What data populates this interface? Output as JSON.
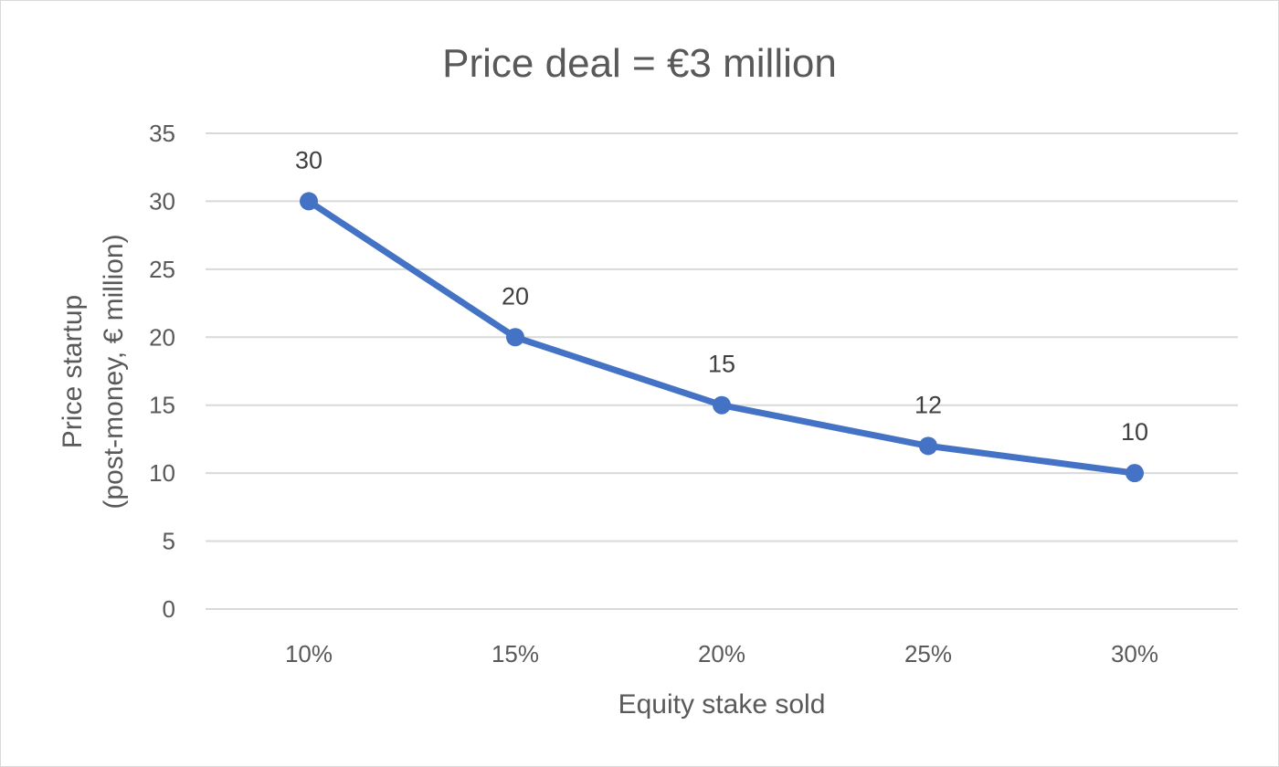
{
  "chart_data": {
    "type": "line",
    "title": "Price deal = €3 million",
    "xlabel": "Equity stake sold",
    "ylabel_lines": [
      "Price startup",
      "(post-money, € million)"
    ],
    "categories": [
      "10%",
      "15%",
      "20%",
      "25%",
      "30%"
    ],
    "series": [
      {
        "values": [
          30,
          20,
          15,
          12,
          10
        ],
        "color": "#4472c4"
      }
    ],
    "data_labels": [
      "30",
      "20",
      "15",
      "12",
      "10"
    ],
    "ylim": [
      0,
      35
    ],
    "yticks": [
      "0",
      "5",
      "10",
      "15",
      "20",
      "25",
      "30",
      "35"
    ],
    "grid": true,
    "legend": "none"
  }
}
